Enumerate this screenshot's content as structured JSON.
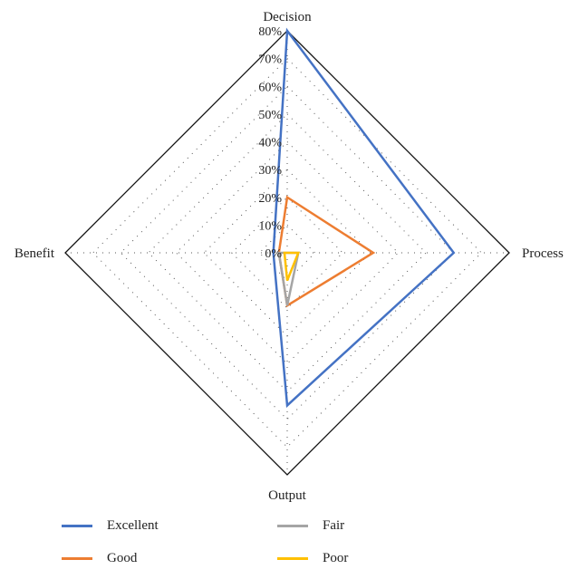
{
  "chart_data": {
    "type": "radar",
    "axes": [
      "Decision",
      "Process",
      "Output",
      "Benefit"
    ],
    "ticks": [
      "0%",
      "10%",
      "20%",
      "30%",
      "40%",
      "50%",
      "60%",
      "70%",
      "80%"
    ],
    "rmax": 80,
    "grid": "dotted",
    "legend_position": "bottom",
    "series": [
      {
        "name": "Excellent",
        "color": "#4472C4",
        "values": [
          80,
          60,
          55,
          5
        ]
      },
      {
        "name": "Good",
        "color": "#ED7D31",
        "values": [
          20,
          31,
          19,
          3
        ]
      },
      {
        "name": "Fair",
        "color": "#A5A5A5",
        "values": [
          0,
          4,
          19,
          3
        ]
      },
      {
        "name": "Poor",
        "color": "#FFC000",
        "values": [
          0,
          4,
          10,
          1
        ]
      }
    ]
  }
}
